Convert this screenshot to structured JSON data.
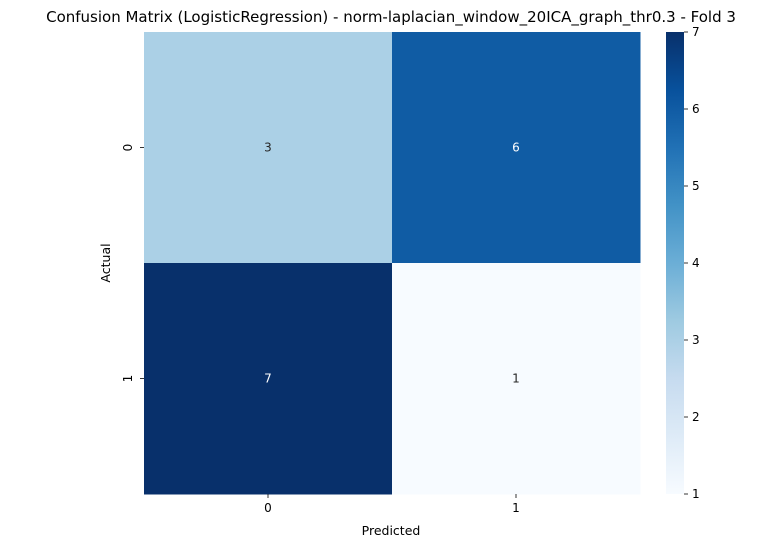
{
  "chart_data": {
    "type": "heatmap",
    "title": "Confusion Matrix (LogisticRegression) - norm-laplacian_window_20ICA_graph_thr0.3 - Fold 3",
    "xlabel": "Predicted",
    "ylabel": "Actual",
    "x_categories": [
      "0",
      "1"
    ],
    "y_categories": [
      "0",
      "1"
    ],
    "values": [
      [
        3,
        6
      ],
      [
        7,
        1
      ]
    ],
    "colormap": "Blues",
    "color_range": [
      1,
      7
    ],
    "colorbar_ticks": [
      "1",
      "2",
      "3",
      "4",
      "5",
      "6",
      "7"
    ],
    "colorbar_placement": "right",
    "annotate_cells": true,
    "grid": false
  }
}
